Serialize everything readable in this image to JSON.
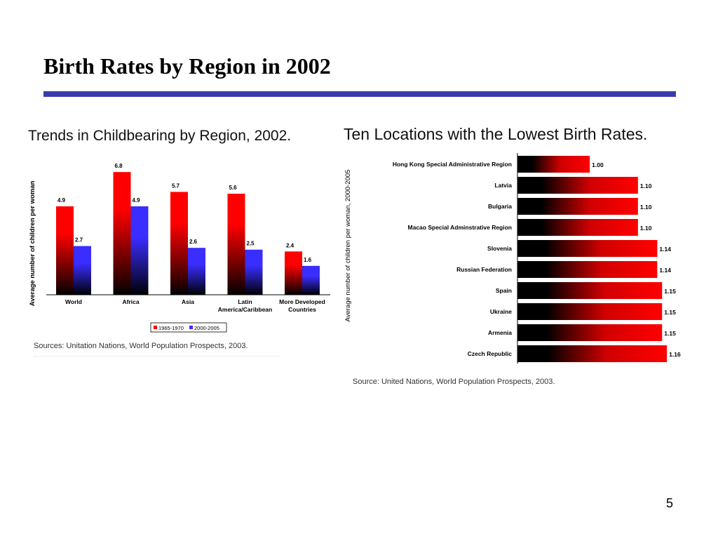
{
  "slide": {
    "title": "Birth Rates by Region in 2002",
    "page_number": "5"
  },
  "colors": {
    "title_rule": "#3a3bab",
    "series_red": "#ff0000",
    "series_blue": "#3a2dff",
    "bar_dark": "#000000"
  },
  "chart_data": [
    {
      "type": "bar",
      "title": "Trends in Childbearing by Region, 2002.",
      "ylabel": "Average number of children per woman",
      "xlabel": "",
      "categories": [
        "World",
        "Africa",
        "Asia",
        "Latin\nAmerica/Caribbean",
        "More Developed\nCountries"
      ],
      "series": [
        {
          "name": "1965-1970",
          "values": [
            4.9,
            6.8,
            5.7,
            5.6,
            2.4
          ],
          "labels": [
            "4.9",
            "6.8",
            "5.7",
            "5.6",
            "2.4"
          ]
        },
        {
          "name": "2000-2005",
          "values": [
            2.7,
            4.9,
            2.6,
            2.5,
            1.6
          ],
          "labels": [
            "2.7",
            "4.9",
            "2.6",
            "2.5",
            "1.6"
          ]
        }
      ],
      "ylim": [
        0,
        7
      ],
      "grid": false,
      "legend": "bottom",
      "source": "Sources: Unitation Nations, World Population Prospects, 2003."
    },
    {
      "type": "bar",
      "orientation": "horizontal",
      "title": "Ten Locations with the Lowest Birth Rates.",
      "ylabel": "Average number of children per woman, 2000-2005",
      "xlabel": "",
      "categories": [
        "Hong Kong Special Administrative Region",
        "Latvia",
        "Bulgaria",
        "Macao Special Adminstrative Region",
        "Slovenia",
        "Russian Federation",
        "Spain",
        "Ukraine",
        "Armenia",
        "Czech Republic"
      ],
      "values": [
        1.0,
        1.1,
        1.1,
        1.1,
        1.14,
        1.14,
        1.15,
        1.15,
        1.15,
        1.16
      ],
      "labels": [
        "1.00",
        "1.10",
        "1.10",
        "1.10",
        "1.14",
        "1.14",
        "1.15",
        "1.15",
        "1.15",
        "1.16"
      ],
      "xlim": [
        0.85,
        1.17
      ],
      "grid": false,
      "legend": "none",
      "source": "Source: United Nations, World Population Prospects, 2003."
    }
  ]
}
